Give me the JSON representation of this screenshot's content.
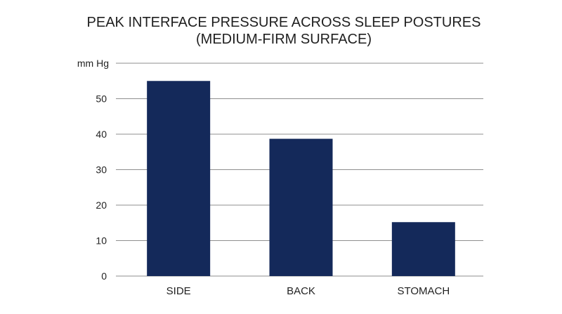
{
  "chart_data": {
    "type": "bar",
    "title_lines": [
      "PEAK INTERFACE PRESSURE ACROSS SLEEP POSTURES",
      "(MEDIUM-FIRM SURFACE)"
    ],
    "unit_label": "mm Hg",
    "categories": [
      "SIDE",
      "BACK",
      "STOMACH"
    ],
    "values": [
      55,
      38.7,
      15.2
    ],
    "ylim": [
      0,
      60
    ],
    "yticks": [
      "0",
      "10",
      "20",
      "30",
      "40",
      "50"
    ],
    "grid": true,
    "bar_color": "#14295a"
  }
}
